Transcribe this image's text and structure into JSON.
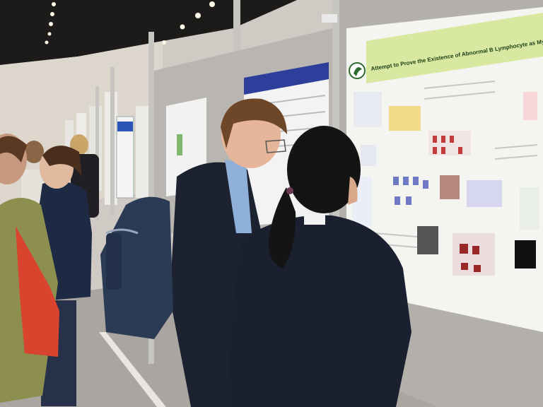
{
  "scene": {
    "description_tag": "poster-session-photo"
  },
  "poster": {
    "title": "Attempt to Prove the Existence of Abnormal B Lymphocyte as Myeloma-Initiating Cells from B Cell-D",
    "accent_color": "#d9e8a0",
    "banner_color": "#2d3f9a"
  },
  "colors": {
    "ceiling": "#1c1b1a",
    "floor": "#a9a5a0",
    "panel": "#b9b6b1",
    "jacket_dark": "#1d2230",
    "bag_red": "#d9442f",
    "backpack": "#2c3b55"
  }
}
